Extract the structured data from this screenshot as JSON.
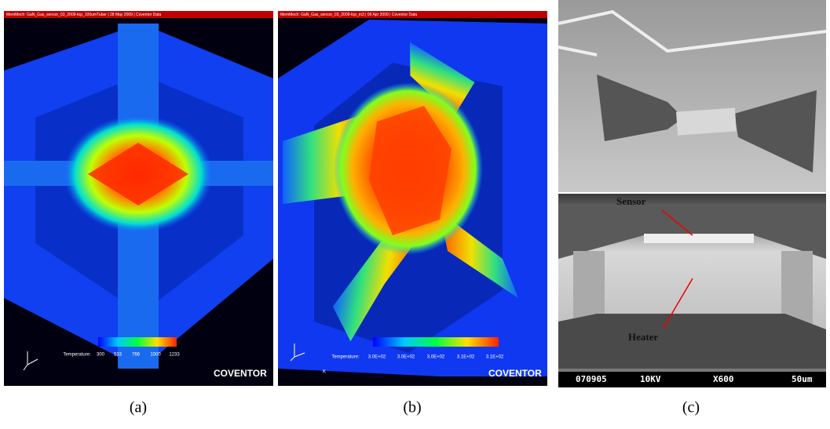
{
  "panels": [
    {
      "header": "MemMech: GaN_Gas_sensor_03_2009-top_100umTuber | 28 May 2009 | Coventor Data",
      "colorbar_title": "Temperature:",
      "colorbar_labels": [
        "300",
        "533",
        "766",
        "1000",
        "1233"
      ],
      "brand": "COVENTOR",
      "caption": "(a)"
    },
    {
      "header": "MemMech: GaN_Gas_sensor_03_2009-top_m3 | 06 Apr 2009 | Coventor Data",
      "colorbar_title": "Temperature:",
      "colorbar_labels": [
        "3.0E+02",
        "3.0E+02",
        "3.0E+02",
        "3.1E+02",
        "3.1E+02"
      ],
      "unit": "K",
      "brand": "COVENTOR",
      "caption": "(b)"
    },
    {
      "labels": [
        "Sensor",
        "Heater"
      ],
      "info_bar": [
        "070905",
        "10KV",
        "X600",
        "50um"
      ],
      "caption": "(c)"
    }
  ]
}
